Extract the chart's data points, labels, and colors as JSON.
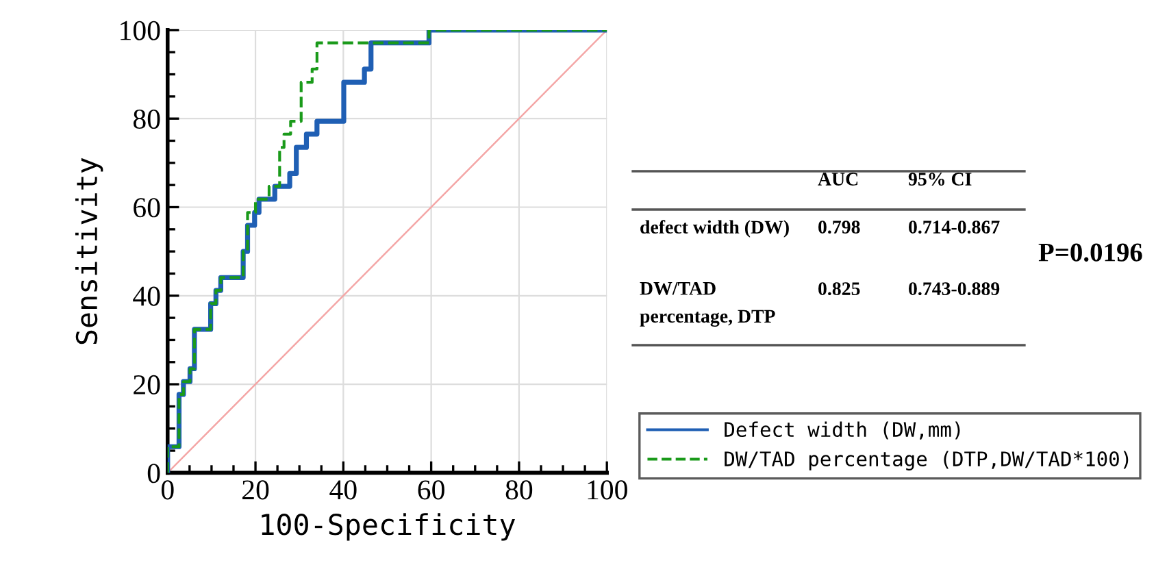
{
  "chart_data": {
    "type": "step",
    "xlabel": "100-Specificity",
    "ylabel": "Sensitivity",
    "xlim": [
      0,
      100
    ],
    "ylim": [
      0,
      100
    ],
    "xticks": [
      0,
      20,
      40,
      60,
      80,
      100
    ],
    "yticks": [
      0,
      20,
      40,
      60,
      80,
      100
    ],
    "grid": true,
    "legend": "bottom right",
    "series": [
      {
        "name": "Defect width (DW,mm)",
        "color": "#1f5fb4",
        "line_style": "solid",
        "x": [
          0,
          0,
          2.6,
          3.6,
          5.1,
          6.1,
          9.8,
          11,
          12.1,
          17.2,
          18.2,
          19.8,
          20.8,
          24.4,
          27.8,
          29.3,
          31.6,
          34,
          40.1,
          44.8,
          46.3,
          59.5,
          100
        ],
        "values": [
          0,
          5.9,
          17.7,
          20.6,
          23.5,
          32.4,
          38.2,
          41.2,
          44.1,
          50,
          55.9,
          58.8,
          61.8,
          64.7,
          67.6,
          73.5,
          76.5,
          79.4,
          88.2,
          91.2,
          97.1,
          100,
          100
        ]
      },
      {
        "name": "DW/TAD percentage (DTP,DW/TAD*100)",
        "color": "#1a9a1a",
        "line_style": "dashed",
        "x": [
          0,
          0,
          2.6,
          3.6,
          5.1,
          6.1,
          9.8,
          11,
          12.1,
          17.2,
          18.2,
          20,
          23.1,
          25.5,
          26.5,
          28,
          30.4,
          32.9,
          34,
          59.5,
          100
        ],
        "values": [
          0,
          5.9,
          17.7,
          20.6,
          23.5,
          32.4,
          38.2,
          41.2,
          44.1,
          50,
          58.8,
          61.8,
          64.7,
          73.5,
          76.5,
          79.4,
          88.2,
          91.2,
          97.1,
          100,
          100
        ]
      },
      {
        "type": "line",
        "color": "#f4a6a6",
        "line_style": "solid",
        "x": [
          0,
          100
        ],
        "values": [
          0,
          100
        ]
      }
    ],
    "annotations": [
      "AUC",
      "95% CI",
      "defect width (DW)",
      "0.798",
      "0.714-0.867",
      "DW/TAD\npercentage, DTP",
      "0.825",
      "0.743-0.889",
      "P=0.0196"
    ]
  }
}
